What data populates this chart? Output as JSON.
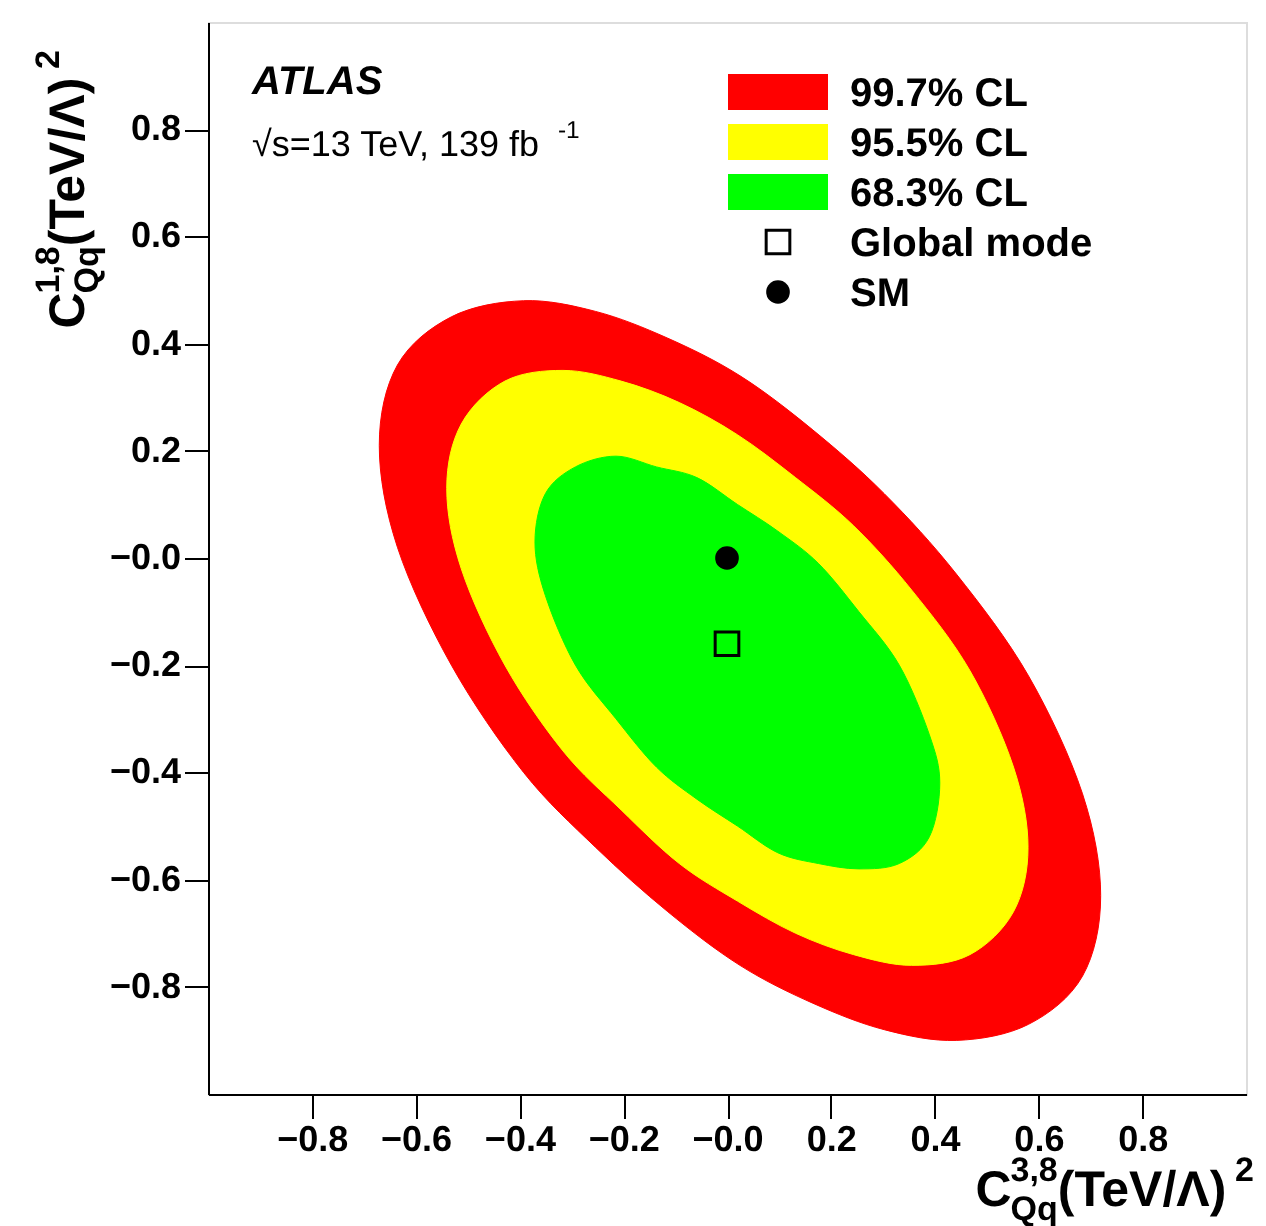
{
  "chart_data": {
    "type": "area",
    "xlabel": "C$^{3,8}$$_{Qq}$(TeV/Λ)$^{2}$",
    "ylabel": "C$^{1,8}$$_{Qq}$(TeV/Λ)$^{2}$",
    "annotations": [
      "ATLAS",
      "√s=13 TeV, 139 fb$^{-1}$"
    ],
    "xlim": [
      -1,
      1
    ],
    "ylim": [
      -1,
      1
    ],
    "xticks": [
      {
        "value": -0.8,
        "label": "−0.8"
      },
      {
        "value": -0.6,
        "label": "−0.6"
      },
      {
        "value": -0.4,
        "label": "−0.4"
      },
      {
        "value": -0.2,
        "label": "−0.2"
      },
      {
        "value": 0,
        "label": "−0.0"
      },
      0.2,
      0.4,
      0.6,
      0.8
    ],
    "yticks": [
      {
        "value": -0.8,
        "label": "−0.8"
      },
      {
        "value": -0.6,
        "label": "−0.6"
      },
      {
        "value": -0.4,
        "label": "−0.4"
      },
      {
        "value": -0.2,
        "label": "−0.2"
      },
      {
        "value": 0,
        "label": "−0.0"
      },
      0.2,
      0.4,
      0.6,
      0.8
    ],
    "grid": false,
    "legend": "top right",
    "series": [
      {
        "name": "99.7% CL",
        "color": "#ff0000",
        "x": [
          -0.67,
          -0.635,
          -0.531,
          -0.392,
          -0.253,
          -0.114,
          0.025,
          0.164,
          0.303,
          0.442,
          0.581,
          0.685,
          0.72,
          0.685,
          0.581,
          0.442,
          0.303,
          0.164,
          0.025,
          -0.114,
          -0.253,
          -0.392,
          -0.531,
          -0.635
        ],
        "values": [
          0.21,
          0.36,
          0.45,
          0.48,
          0.46,
          0.41,
          0.34,
          0.24,
          0.12,
          -0.03,
          -0.22,
          -0.44,
          -0.63,
          -0.78,
          -0.87,
          -0.9,
          -0.88,
          -0.83,
          -0.76,
          -0.66,
          -0.54,
          -0.4,
          -0.2,
          0.02
        ]
      },
      {
        "name": "95.5% CL",
        "color": "#ffff00",
        "x": [
          -0.54,
          -0.512,
          -0.428,
          -0.316,
          -0.204,
          -0.092,
          0.02,
          0.132,
          0.244,
          0.356,
          0.468,
          0.552,
          0.58,
          0.552,
          0.468,
          0.356,
          0.244,
          0.132,
          0.02,
          -0.092,
          -0.204,
          -0.316,
          -0.428,
          -0.512
        ],
        "values": [
          0.13,
          0.25,
          0.33,
          0.35,
          0.33,
          0.29,
          0.23,
          0.15,
          0.06,
          -0.06,
          -0.21,
          -0.39,
          -0.54,
          -0.66,
          -0.74,
          -0.76,
          -0.74,
          -0.7,
          -0.64,
          -0.57,
          -0.47,
          -0.36,
          -0.2,
          -0.02
        ]
      },
      {
        "name": "68.3% CL",
        "color": "#00ff00",
        "x": [
          -0.37,
          -0.35,
          -0.292,
          -0.214,
          -0.136,
          -0.058,
          0.02,
          0.098,
          0.176,
          0.254,
          0.332,
          0.39,
          0.41,
          0.39,
          0.332,
          0.254,
          0.176,
          0.098,
          0.02,
          -0.058,
          -0.136,
          -0.214,
          -0.292,
          -0.35
        ],
        "values": [
          0.03,
          0.12,
          0.17,
          0.19,
          0.17,
          0.15,
          0.1,
          0.05,
          -0.01,
          -0.1,
          -0.2,
          -0.33,
          -0.42,
          -0.52,
          -0.57,
          -0.58,
          -0.57,
          -0.55,
          -0.5,
          -0.45,
          -0.39,
          -0.3,
          -0.2,
          -0.07
        ]
      },
      {
        "name": "Global mode",
        "type": "scatter",
        "marker": "square",
        "color": "#000000",
        "x": [
          0
        ],
        "values": [
          -0.16
        ]
      },
      {
        "name": "SM",
        "type": "scatter",
        "marker": "circle",
        "color": "#000000",
        "x": [
          0
        ],
        "values": [
          0
        ]
      }
    ]
  }
}
